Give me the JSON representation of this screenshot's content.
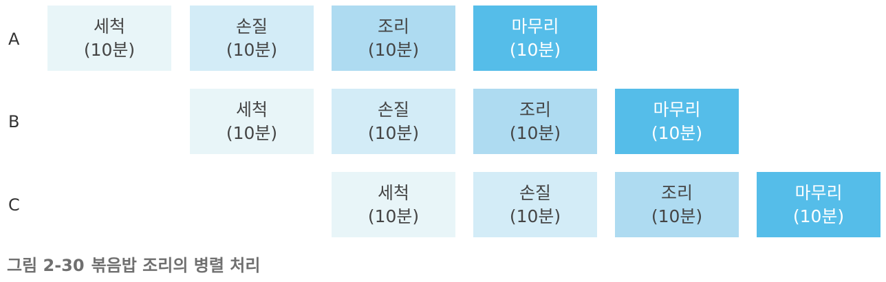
{
  "rows": [
    {
      "label": "A",
      "steps": [
        {
          "name": "세척",
          "duration": "(10분)"
        },
        {
          "name": "손질",
          "duration": "(10분)"
        },
        {
          "name": "조리",
          "duration": "(10분)"
        },
        {
          "name": "마무리",
          "duration": "(10분)"
        }
      ]
    },
    {
      "label": "B",
      "steps": [
        {
          "name": "세척",
          "duration": "(10분)"
        },
        {
          "name": "손질",
          "duration": "(10분)"
        },
        {
          "name": "조리",
          "duration": "(10분)"
        },
        {
          "name": "마무리",
          "duration": "(10분)"
        }
      ]
    },
    {
      "label": "C",
      "steps": [
        {
          "name": "세척",
          "duration": "(10분)"
        },
        {
          "name": "손질",
          "duration": "(10분)"
        },
        {
          "name": "조리",
          "duration": "(10분)"
        },
        {
          "name": "마무리",
          "duration": "(10분)"
        }
      ]
    }
  ],
  "caption": {
    "number": "그림 2-30",
    "text": "볶음밥 조리의 병렬 처리"
  },
  "colors": {
    "step_1": "#e8f5f8",
    "step_2": "#d3ecf7",
    "step_3": "#aedbf1",
    "step_4": "#55bde9"
  }
}
